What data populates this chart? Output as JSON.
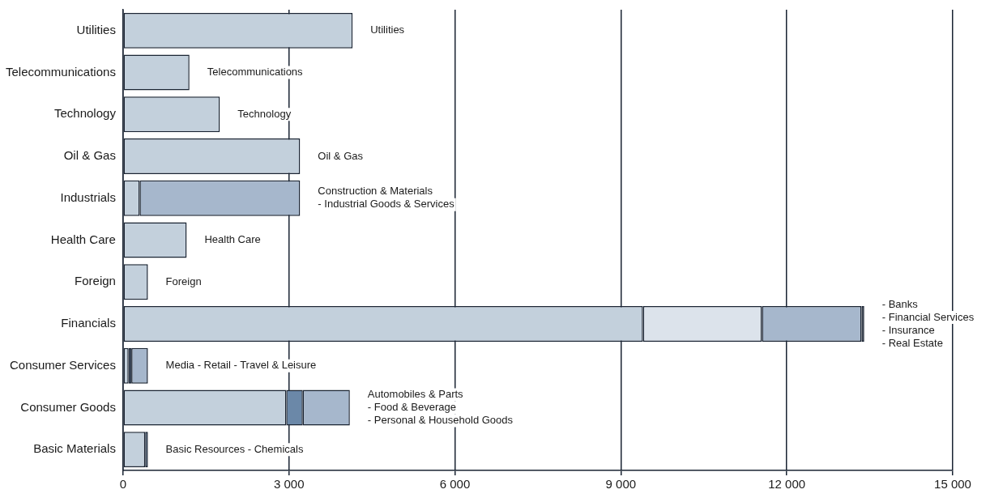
{
  "chart_data": {
    "type": "bar",
    "orientation": "horizontal",
    "stacked": true,
    "categories": [
      "Utilities",
      "Telecommunications",
      "Technology",
      "Oil & Gas",
      "Industrials",
      "Health Care",
      "Foreign",
      "Financials",
      "Consumer Services",
      "Consumer Goods",
      "Basic Materials"
    ],
    "series": [
      {
        "color": "#c3d0dc",
        "values": [
          4150,
          1200,
          1750,
          3200,
          300,
          1150,
          450,
          9400,
          100,
          2950,
          400
        ]
      },
      {
        "colors": [
          null,
          null,
          null,
          null,
          "#a6b7cc",
          null,
          null,
          "#dce3eb",
          "#2e4a6a",
          "#6b88a8",
          "#5a7ca0"
        ],
        "values": [
          null,
          null,
          null,
          null,
          2900,
          null,
          null,
          2150,
          50,
          300,
          50
        ]
      },
      {
        "color": "#a6b7cc",
        "values": [
          null,
          null,
          null,
          null,
          null,
          null,
          null,
          1800,
          300,
          850,
          null
        ]
      },
      {
        "color": "#1a2433",
        "values": [
          null,
          null,
          null,
          null,
          null,
          null,
          null,
          50,
          null,
          null,
          null
        ]
      }
    ],
    "xlim": [
      0,
      15000
    ],
    "xticks": [
      0,
      {
        "value": 3000,
        "label": "3 000"
      },
      {
        "value": 6000,
        "label": "6 000"
      },
      {
        "value": 9000,
        "label": "9 000"
      },
      {
        "value": 12000,
        "label": "12 000"
      },
      {
        "value": 15000,
        "label": "15 000"
      }
    ],
    "grid": "x",
    "legend": false,
    "annotations": [
      "Utilities",
      "Telecommunications",
      "Technology",
      "Oil & Gas",
      "Construction & Materials\n- Industrial Goods & Services",
      "Health Care",
      "Foreign",
      "- Banks\n- Financial Services\n- Insurance\n- Real Estate",
      "Media - Retail - Travel & Leisure",
      "Automobiles & Parts\n- Food & Beverage\n- Personal & Household Goods",
      "Basic Resources - Chemicals"
    ]
  }
}
